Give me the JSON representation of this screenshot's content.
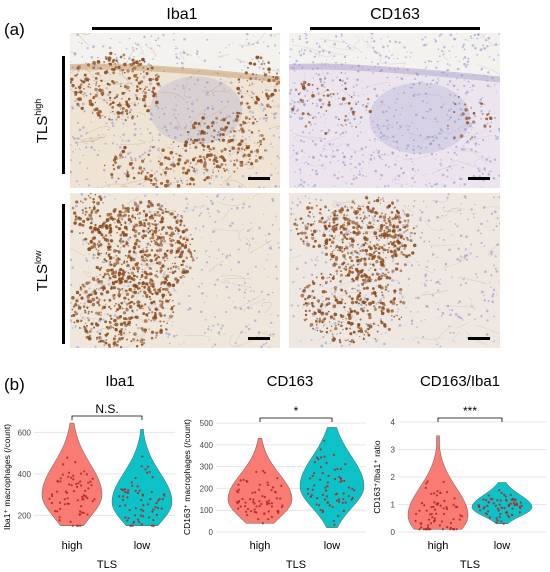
{
  "figure": {
    "panel_a_label": "(a)",
    "panel_b_label": "(b)",
    "columns": [
      "Iba1",
      "CD163"
    ],
    "rows": [
      {
        "base": "TLS",
        "sup": "high"
      },
      {
        "base": "TLS",
        "sup": "low"
      }
    ]
  },
  "colors": {
    "high": "#f8766d",
    "low": "#00bfc4",
    "stain_brown": "#8a4a1c",
    "hematoxylin": "#8d8fc8"
  },
  "chart_data": [
    {
      "type": "violin",
      "title": "Iba1",
      "xlabel": "TLS",
      "ylabel": "Iba1⁺ macrophages (/count)",
      "categories": [
        "high",
        "low"
      ],
      "ylim": [
        110,
        660
      ],
      "yticks": [
        200,
        400,
        600
      ],
      "grid": true,
      "significance": "N.S.",
      "series": [
        {
          "name": "high",
          "min": 150,
          "max": 645,
          "median": 300
        },
        {
          "name": "low",
          "min": 150,
          "max": 615,
          "median": 265
        }
      ]
    },
    {
      "type": "violin",
      "title": "CD163",
      "xlabel": "TLS",
      "ylabel": "CD163⁺ macrophages (/count)",
      "categories": [
        "high",
        "low"
      ],
      "ylim": [
        0,
        505
      ],
      "yticks": [
        0,
        100,
        200,
        300,
        400,
        500
      ],
      "grid": true,
      "significance": "*",
      "series": [
        {
          "name": "high",
          "min": 40,
          "max": 430,
          "median": 150
        },
        {
          "name": "low",
          "min": 20,
          "max": 480,
          "median": 210
        }
      ]
    },
    {
      "type": "violin",
      "title": "CD163/Iba1",
      "xlabel": "TLS",
      "ylabel": "CD163⁺/Iba1⁺ ratio",
      "categories": [
        "high",
        "low"
      ],
      "ylim": [
        0,
        4
      ],
      "yticks": [
        0,
        1,
        2,
        3,
        4
      ],
      "grid": true,
      "significance": "***",
      "series": [
        {
          "name": "high",
          "min": 0.1,
          "max": 3.5,
          "median": 0.6
        },
        {
          "name": "low",
          "min": 0.3,
          "max": 1.8,
          "median": 0.9
        }
      ]
    }
  ]
}
